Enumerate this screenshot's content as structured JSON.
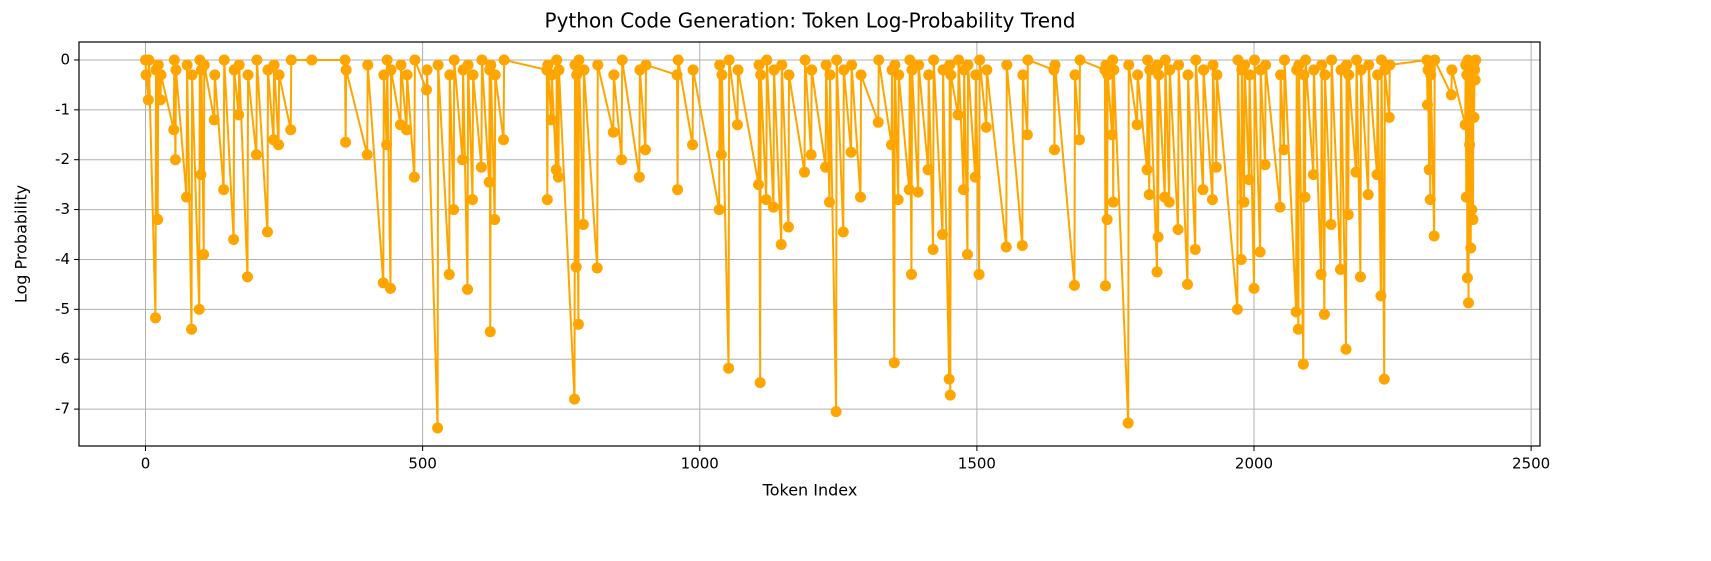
{
  "chart_data": {
    "type": "line",
    "title": "Python Code Generation: Token Log-Probability Trend",
    "xlabel": "Token Index",
    "ylabel": "Log Probability",
    "xlim": [
      -120,
      2516
    ],
    "ylim": [
      -7.74,
      0.36
    ],
    "xticks": [
      0,
      500,
      1000,
      1500,
      2000,
      2500
    ],
    "yticks": [
      -7,
      -6,
      -5,
      -4,
      -3,
      -2,
      -1,
      0
    ],
    "grid": true,
    "x": [
      0,
      1,
      5,
      6,
      18,
      19,
      22,
      23,
      27,
      28,
      51,
      52,
      54,
      55,
      74,
      75,
      83,
      84,
      97,
      98,
      100,
      101,
      105,
      106,
      124,
      125,
      141,
      142,
      159,
      160,
      168,
      169,
      184,
      185,
      200,
      201,
      220,
      221,
      231,
      232,
      240,
      241,
      262,
      263,
      300,
      360,
      361,
      362,
      400,
      401,
      429,
      430,
      435,
      436,
      442,
      443,
      460,
      461,
      471,
      472,
      485,
      486,
      507,
      508,
      527,
      528,
      548,
      549,
      556,
      557,
      572,
      573,
      581,
      582,
      590,
      591,
      606,
      607,
      620,
      621,
      622,
      623,
      630,
      631,
      646,
      647,
      724,
      725,
      726,
      732,
      733,
      741,
      742,
      745,
      746,
      774,
      775,
      777,
      778,
      781,
      782,
      790,
      791,
      815,
      816,
      844,
      845,
      859,
      860,
      891,
      892,
      902,
      903,
      959,
      960,
      961,
      987,
      988,
      1035,
      1036,
      1039,
      1040,
      1052,
      1053,
      1068,
      1069,
      1106,
      1107,
      1109,
      1110,
      1120,
      1121,
      1133,
      1134,
      1147,
      1148,
      1160,
      1161,
      1189,
      1190,
      1201,
      1202,
      1227,
      1228,
      1234,
      1235,
      1246,
      1247,
      1259,
      1260,
      1273,
      1274,
      1290,
      1291,
      1322,
      1323,
      1346,
      1347,
      1351,
      1352,
      1358,
      1359,
      1378,
      1379,
      1382,
      1383,
      1394,
      1395,
      1412,
      1413,
      1421,
      1422,
      1438,
      1439,
      1450,
      1451,
      1452,
      1453,
      1466,
      1467,
      1476,
      1477,
      1483,
      1484,
      1497,
      1498,
      1504,
      1505,
      1517,
      1518,
      1553,
      1554,
      1582,
      1583,
      1591,
      1592,
      1639,
      1640,
      1641,
      1676,
      1677,
      1685,
      1686,
      1731,
      1732,
      1733,
      1735,
      1736,
      1744,
      1745,
      1746,
      1747,
      1773,
      1774,
      1789,
      1790,
      1807,
      1808,
      1811,
      1812,
      1825,
      1826,
      1827,
      1828,
      1839,
      1840,
      1847,
      1848,
      1863,
      1864,
      1880,
      1881,
      1894,
      1895,
      1908,
      1909,
      1925,
      1926,
      1932,
      1933,
      1970,
      1971,
      1977,
      1978,
      1982,
      1983,
      1991,
      1992,
      2000,
      2001,
      2011,
      2012,
      2020,
      2021,
      2047,
      2048,
      2054,
      2055,
      2076,
      2077,
      2080,
      2081,
      2089,
      2090,
      2092,
      2093,
      2107,
      2108,
      2121,
      2122,
      2127,
      2128,
      2139,
      2140,
      2156,
      2157,
      2166,
      2167,
      2170,
      2171,
      2184,
      2185,
      2192,
      2193,
      2206,
      2207,
      2222,
      2223,
      2229,
      2230,
      2235,
      2236,
      2244,
      2245,
      2312,
      2313,
      2314,
      2316,
      2317,
      2318,
      2319,
      2325,
      2326,
      2356,
      2357,
      2381,
      2382,
      2383,
      2384,
      2385,
      2386,
      2387,
      2388,
      2389,
      2390,
      2391,
      2392,
      2393,
      2394,
      2395,
      2396,
      2397,
      2398,
      2399,
      2400
    ],
    "series": [
      {
        "name": "Log Probability",
        "color": "#ffa500",
        "values": [
          0,
          -0.3,
          -0.8,
          0,
          -5.17,
          -0.2,
          -3.2,
          -0.1,
          -0.8,
          -0.3,
          -1.4,
          0,
          -2.0,
          -0.2,
          -2.75,
          -0.1,
          -5.4,
          -0.3,
          -5.0,
          0,
          -2.3,
          -0.2,
          -3.9,
          -0.1,
          -1.2,
          -0.3,
          -2.6,
          0,
          -3.6,
          -0.2,
          -1.1,
          -0.1,
          -4.35,
          -0.3,
          -1.9,
          0,
          -3.45,
          -0.2,
          -1.6,
          -0.1,
          -1.7,
          -0.3,
          -1.4,
          0,
          0,
          0,
          -1.65,
          -0.2,
          -1.9,
          -0.1,
          -4.47,
          -0.3,
          -1.7,
          0,
          -4.58,
          -0.2,
          -1.3,
          -0.1,
          -1.4,
          -0.3,
          -2.35,
          0,
          -0.6,
          -0.2,
          -7.38,
          -0.1,
          -4.3,
          -0.3,
          -3.0,
          0,
          -2.0,
          -0.2,
          -4.6,
          -0.1,
          -2.8,
          -0.3,
          -2.15,
          0,
          -2.45,
          -0.2,
          -5.45,
          -0.1,
          -3.2,
          -0.3,
          -1.6,
          0,
          -0.2,
          -2.8,
          -0.1,
          -1.2,
          -0.3,
          -2.2,
          0,
          -2.35,
          -0.2,
          -6.8,
          -0.1,
          -4.15,
          -0.3,
          -5.3,
          0,
          -3.3,
          -0.2,
          -4.17,
          -0.1,
          -1.45,
          -0.3,
          -2.0,
          0,
          -2.35,
          -0.2,
          -1.8,
          -0.1,
          -0.3,
          -2.6,
          0,
          -1.7,
          -0.2,
          -3.0,
          -0.1,
          -1.9,
          -0.3,
          -6.18,
          0,
          -1.3,
          -0.2,
          -2.5,
          -0.1,
          -6.47,
          -0.3,
          -2.8,
          0,
          -2.95,
          -0.2,
          -3.7,
          -0.1,
          -3.35,
          -0.3,
          -2.25,
          0,
          -1.9,
          -0.2,
          -2.15,
          -0.1,
          -2.85,
          -0.3,
          -7.05,
          0,
          -3.45,
          -0.2,
          -1.85,
          -0.1,
          -2.75,
          -0.3,
          -1.25,
          0,
          -1.7,
          -0.2,
          -6.07,
          -0.1,
          -2.8,
          -0.3,
          -2.6,
          0,
          -4.3,
          -0.2,
          -2.65,
          -0.1,
          -2.2,
          -0.3,
          -3.8,
          0,
          -3.5,
          -0.2,
          -6.4,
          -0.1,
          -6.72,
          -0.3,
          -1.1,
          0,
          -2.6,
          -0.2,
          -3.9,
          -0.1,
          -2.35,
          -0.3,
          -4.3,
          0,
          -1.35,
          -0.2,
          -3.75,
          -0.1,
          -3.72,
          -0.3,
          -1.5,
          0,
          -0.2,
          -1.8,
          -0.1,
          -4.52,
          -0.3,
          -1.6,
          0,
          -0.2,
          -4.53,
          -0.1,
          -3.2,
          -0.3,
          -1.5,
          0,
          -2.85,
          -0.2,
          -7.28,
          -0.1,
          -1.3,
          -0.3,
          -2.2,
          0,
          -2.7,
          -0.2,
          -4.25,
          -0.1,
          -3.55,
          -0.3,
          -2.75,
          0,
          -2.85,
          -0.2,
          -3.4,
          -0.1,
          -4.5,
          -0.3,
          -3.8,
          0,
          -2.6,
          -0.2,
          -2.8,
          -0.1,
          -2.15,
          -0.3,
          -5.0,
          0,
          -4.0,
          -0.2,
          -2.85,
          -0.1,
          -2.4,
          -0.3,
          -4.58,
          0,
          -3.85,
          -0.2,
          -2.1,
          -0.1,
          -2.95,
          -0.3,
          -1.8,
          0,
          -5.05,
          -0.2,
          -5.4,
          -0.1,
          -6.1,
          -0.3,
          -2.75,
          0,
          -2.3,
          -0.2,
          -4.3,
          -0.1,
          -5.1,
          -0.3,
          -3.3,
          0,
          -4.2,
          -0.2,
          -5.8,
          -0.1,
          -3.1,
          -0.3,
          -2.25,
          0,
          -4.35,
          -0.2,
          -2.7,
          -0.1,
          -2.3,
          -0.3,
          -4.73,
          0,
          -6.4,
          -0.2,
          -1.15,
          -0.1,
          0,
          -0.9,
          -0.2,
          -2.2,
          -0.1,
          -2.8,
          -0.3,
          -3.53,
          0,
          -0.7,
          -0.2,
          -1.3,
          -0.1,
          -2.75,
          -0.3,
          -4.37,
          0,
          -4.87,
          -0.2,
          -1.7,
          -0.1,
          -3.77,
          -0.3,
          -3.0,
          -0.2,
          -3.2,
          -0.1,
          -1.15,
          -0.2,
          -0.4,
          0
        ]
      }
    ]
  }
}
